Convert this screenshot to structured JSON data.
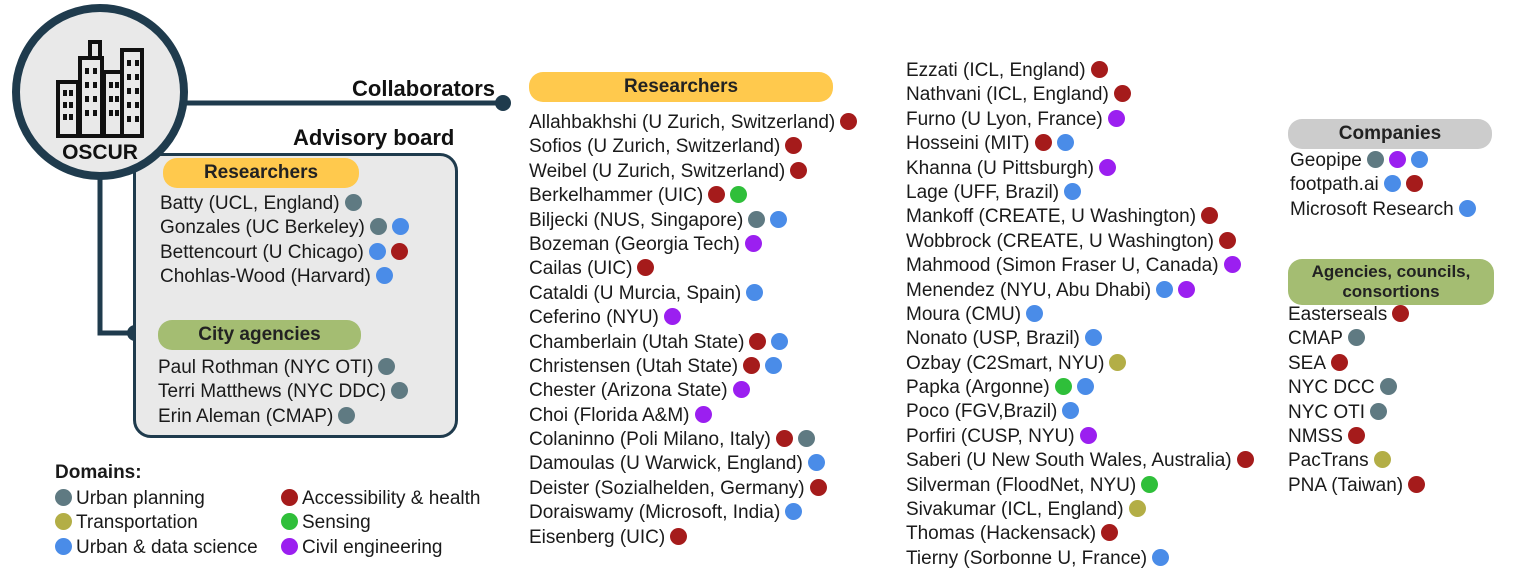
{
  "colors": {
    "urban_planning": "#5f7a82",
    "transportation": "#b3ae46",
    "urban_data_science": "#4a8ce8",
    "accessibility_health": "#a51b1b",
    "sensing": "#2fbf3a",
    "civil_engineering": "#9b1ff0"
  },
  "hub": {
    "label": "OSCUR",
    "icon": "city-buildings-icon"
  },
  "collaborators_label": "Collaborators",
  "advisory": {
    "title": "Advisory board",
    "researchers_label": "Researchers",
    "researchers": [
      {
        "name": "Batty (UCL, England)",
        "domains": [
          "urban_planning"
        ]
      },
      {
        "name": "Gonzales (UC Berkeley)",
        "domains": [
          "urban_planning",
          "urban_data_science"
        ]
      },
      {
        "name": "Bettencourt (U Chicago)",
        "domains": [
          "urban_data_science",
          "accessibility_health"
        ]
      },
      {
        "name": "Chohlas-Wood (Harvard)",
        "domains": [
          "urban_data_science"
        ]
      }
    ],
    "agencies_label": "City agencies",
    "agencies": [
      {
        "name": "Paul Rothman (NYC OTI)",
        "domains": [
          "urban_planning"
        ]
      },
      {
        "name": "Terri Matthews (NYC DDC)",
        "domains": [
          "urban_planning"
        ]
      },
      {
        "name": "Erin Aleman (CMAP)",
        "domains": [
          "urban_planning"
        ]
      }
    ]
  },
  "collab_researchers_label": "Researchers",
  "collab_col1": [
    {
      "name": "Allahbakhshi (U Zurich, Switzerland)",
      "domains": [
        "accessibility_health"
      ]
    },
    {
      "name": "Sofios (U Zurich, Switzerland)",
      "domains": [
        "accessibility_health"
      ]
    },
    {
      "name": "Weibel (U Zurich, Switzerland)",
      "domains": [
        "accessibility_health"
      ]
    },
    {
      "name": "Berkelhammer (UIC)",
      "domains": [
        "accessibility_health",
        "sensing"
      ]
    },
    {
      "name": "Biljecki (NUS, Singapore)",
      "domains": [
        "urban_planning",
        "urban_data_science"
      ]
    },
    {
      "name": "Bozeman (Georgia Tech)",
      "domains": [
        "civil_engineering"
      ]
    },
    {
      "name": "Cailas (UIC)",
      "domains": [
        "accessibility_health"
      ]
    },
    {
      "name": "Cataldi (U Murcia, Spain)",
      "domains": [
        "urban_data_science"
      ]
    },
    {
      "name": "Ceferino (NYU)",
      "domains": [
        "civil_engineering"
      ]
    },
    {
      "name": "Chamberlain (Utah State)",
      "domains": [
        "accessibility_health",
        "urban_data_science"
      ]
    },
    {
      "name": "Christensen (Utah State)",
      "domains": [
        "accessibility_health",
        "urban_data_science"
      ]
    },
    {
      "name": "Chester (Arizona State)",
      "domains": [
        "civil_engineering"
      ]
    },
    {
      "name": "Choi (Florida A&M)",
      "domains": [
        "civil_engineering"
      ]
    },
    {
      "name": "Colaninno (Poli Milano, Italy)",
      "domains": [
        "accessibility_health",
        "urban_planning"
      ]
    },
    {
      "name": "Damoulas (U Warwick, England)",
      "domains": [
        "urban_data_science"
      ]
    },
    {
      "name": "Deister (Sozialhelden, Germany)",
      "domains": [
        "accessibility_health"
      ]
    },
    {
      "name": "Doraiswamy (Microsoft, India)",
      "domains": [
        "urban_data_science"
      ]
    },
    {
      "name": "Eisenberg (UIC)",
      "domains": [
        "accessibility_health"
      ]
    }
  ],
  "collab_col2": [
    {
      "name": "Ezzati (ICL, England)",
      "domains": [
        "accessibility_health"
      ]
    },
    {
      "name": "Nathvani (ICL, England)",
      "domains": [
        "accessibility_health"
      ]
    },
    {
      "name": "Furno (U Lyon, France)",
      "domains": [
        "civil_engineering"
      ]
    },
    {
      "name": "Hosseini (MIT)",
      "domains": [
        "accessibility_health",
        "urban_data_science"
      ]
    },
    {
      "name": "Khanna (U Pittsburgh)",
      "domains": [
        "civil_engineering"
      ]
    },
    {
      "name": "Lage (UFF, Brazil)",
      "domains": [
        "urban_data_science"
      ]
    },
    {
      "name": "Mankoff (CREATE, U Washington)",
      "domains": [
        "accessibility_health"
      ]
    },
    {
      "name": "Wobbrock (CREATE, U Washington)",
      "domains": [
        "accessibility_health"
      ]
    },
    {
      "name": "Mahmood (Simon Fraser U, Canada)",
      "domains": [
        "civil_engineering"
      ]
    },
    {
      "name": "Menendez (NYU, Abu Dhabi)",
      "domains": [
        "urban_data_science",
        "civil_engineering"
      ]
    },
    {
      "name": "Moura (CMU)",
      "domains": [
        "urban_data_science"
      ]
    },
    {
      "name": "Nonato (USP, Brazil)",
      "domains": [
        "urban_data_science"
      ]
    },
    {
      "name": "Ozbay (C2Smart, NYU)",
      "domains": [
        "transportation"
      ]
    },
    {
      "name": "Papka (Argonne)",
      "domains": [
        "sensing",
        "urban_data_science"
      ]
    },
    {
      "name": "Poco (FGV,Brazil)",
      "domains": [
        "urban_data_science"
      ]
    },
    {
      "name": "Porfiri (CUSP, NYU)",
      "domains": [
        "civil_engineering"
      ]
    },
    {
      "name": "Saberi (U New South Wales, Australia)",
      "domains": [
        "accessibility_health"
      ]
    },
    {
      "name": "Silverman (FloodNet, NYU)",
      "domains": [
        "sensing"
      ]
    },
    {
      "name": "Sivakumar (ICL, England)",
      "domains": [
        "transportation"
      ]
    },
    {
      "name": "Thomas (Hackensack)",
      "domains": [
        "accessibility_health"
      ]
    },
    {
      "name": "Tierny (Sorbonne U, France)",
      "domains": [
        "urban_data_science"
      ]
    }
  ],
  "companies_label": "Companies",
  "companies": [
    {
      "name": "Geopipe",
      "domains": [
        "urban_planning",
        "civil_engineering",
        "urban_data_science"
      ]
    },
    {
      "name": "footpath.ai",
      "domains": [
        "urban_data_science",
        "accessibility_health"
      ]
    },
    {
      "name": "Microsoft Research",
      "domains": [
        "urban_data_science"
      ]
    }
  ],
  "agencies_councils_label": "Agencies, councils, consortions",
  "agencies_councils": [
    {
      "name": "Easterseals",
      "domains": [
        "accessibility_health"
      ]
    },
    {
      "name": "CMAP",
      "domains": [
        "urban_planning"
      ]
    },
    {
      "name": "SEA",
      "domains": [
        "accessibility_health"
      ]
    },
    {
      "name": "NYC DCC",
      "domains": [
        "urban_planning"
      ]
    },
    {
      "name": "NYC OTI",
      "domains": [
        "urban_planning"
      ]
    },
    {
      "name": "NMSS",
      "domains": [
        "accessibility_health"
      ]
    },
    {
      "name": "PacTrans",
      "domains": [
        "transportation"
      ]
    },
    {
      "name": "PNA (Taiwan)",
      "domains": [
        "accessibility_health"
      ]
    }
  ],
  "legend": {
    "title": "Domains:",
    "items": [
      {
        "key": "urban_planning",
        "label": "Urban planning"
      },
      {
        "key": "transportation",
        "label": "Transportation"
      },
      {
        "key": "urban_data_science",
        "label": "Urban & data science"
      },
      {
        "key": "accessibility_health",
        "label": "Accessibility & health"
      },
      {
        "key": "sensing",
        "label": "Sensing"
      },
      {
        "key": "civil_engineering",
        "label": "Civil engineering"
      }
    ]
  }
}
